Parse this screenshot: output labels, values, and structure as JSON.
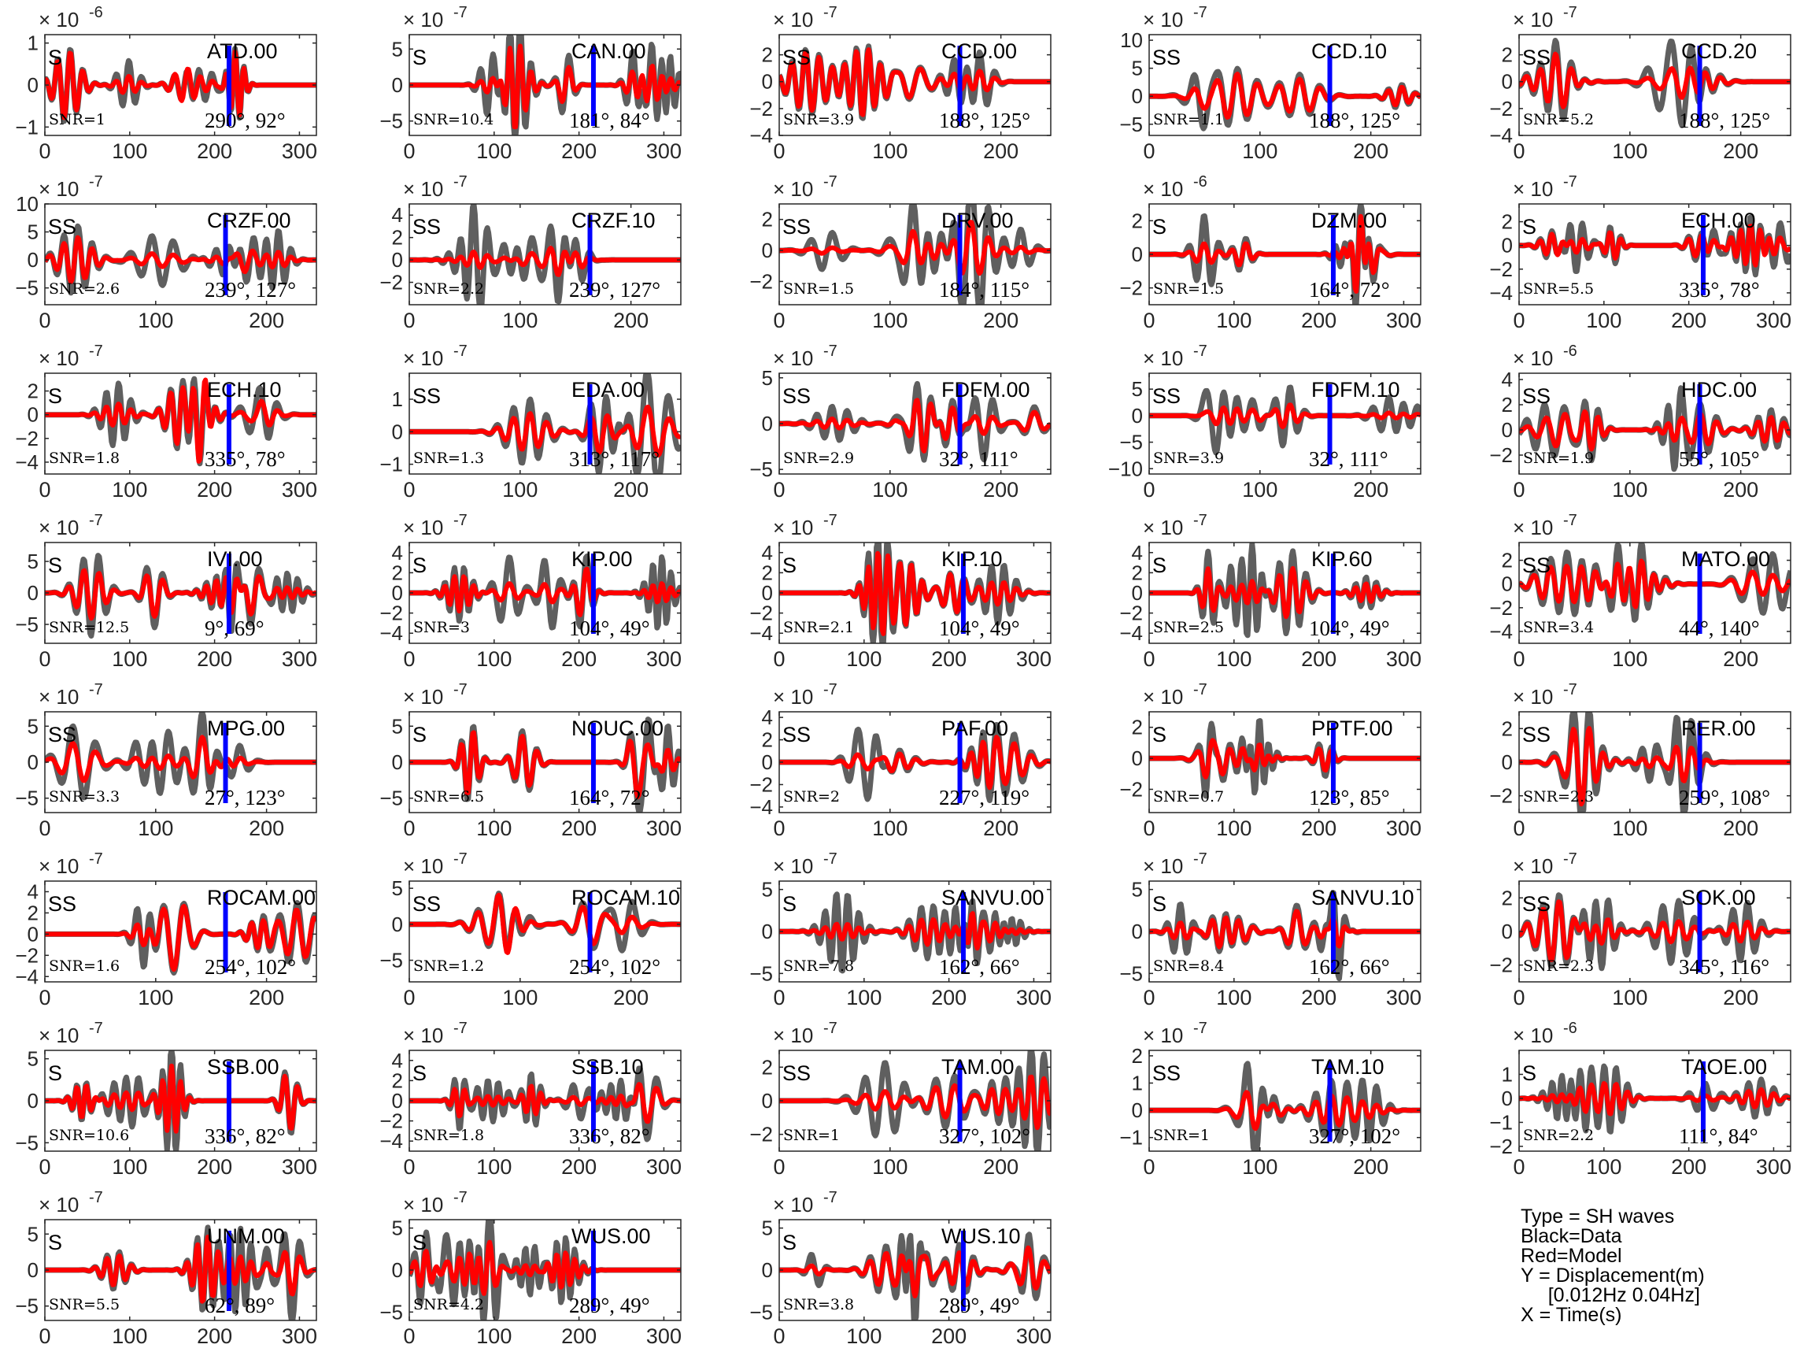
{
  "figure": {
    "legend": {
      "type": "Type = SH waves",
      "black": "Black=Data",
      "red": "Red=Model",
      "y": "Y = Displacement(m)",
      "band": "     [0.012Hz 0.04Hz]",
      "x": "X = Time(s)"
    },
    "colors": {
      "data": "#5f5f5f",
      "model": "#ff0000",
      "marker": "#0000ff",
      "axes": "#262626"
    }
  },
  "chart_data": [
    {
      "type": "line",
      "station": "ATD.00",
      "phase": "S",
      "snr": "SNR=1",
      "angles": "290°, 92°",
      "exponent": "-6",
      "xlim": [
        0,
        320
      ],
      "ylim": [
        -1.2,
        1.2
      ],
      "yticks": [
        -1,
        0,
        1
      ],
      "xticks": [
        0,
        100,
        200,
        300
      ],
      "marker": 217
    },
    {
      "type": "line",
      "station": "CAN.00",
      "phase": "S",
      "snr": "SNR=10.4",
      "angles": "181°, 84°",
      "exponent": "-7",
      "xlim": [
        0,
        320
      ],
      "ylim": [
        -7,
        7
      ],
      "yticks": [
        -5,
        0,
        5
      ],
      "xticks": [
        0,
        100,
        200,
        300
      ],
      "marker": 217
    },
    {
      "type": "line",
      "station": "CCD.00",
      "phase": "SS",
      "snr": "SNR=3.9",
      "angles": "188°, 125°",
      "exponent": "-7",
      "xlim": [
        0,
        245
      ],
      "ylim": [
        -4,
        3.5
      ],
      "yticks": [
        -4,
        -2,
        0,
        2
      ],
      "xticks": [
        0,
        100,
        200
      ],
      "marker": 163
    },
    {
      "type": "line",
      "station": "CCD.10",
      "phase": "SS",
      "snr": "SNR=1.1",
      "angles": "188°, 125°",
      "exponent": "-7",
      "xlim": [
        0,
        245
      ],
      "ylim": [
        -7,
        11
      ],
      "yticks": [
        -5,
        0,
        5,
        10
      ],
      "xticks": [
        0,
        100,
        200
      ],
      "marker": 163
    },
    {
      "type": "line",
      "station": "CCD.20",
      "phase": "SS",
      "snr": "SNR=5.2",
      "angles": "188°, 125°",
      "exponent": "-7",
      "xlim": [
        0,
        245
      ],
      "ylim": [
        -4,
        3.5
      ],
      "yticks": [
        -4,
        -2,
        0,
        2
      ],
      "xticks": [
        0,
        100,
        200
      ],
      "marker": 163
    },
    {
      "type": "line",
      "station": "CRZF.00",
      "phase": "SS",
      "snr": "SNR=2.6",
      "angles": "239°, 127°",
      "exponent": "-7",
      "xlim": [
        0,
        245
      ],
      "ylim": [
        -8,
        10
      ],
      "yticks": [
        -5,
        0,
        5,
        10
      ],
      "xticks": [
        0,
        100,
        200
      ],
      "marker": 163
    },
    {
      "type": "line",
      "station": "CRZF.10",
      "phase": "SS",
      "snr": "SNR=2.2",
      "angles": "239°, 127°",
      "exponent": "-7",
      "xlim": [
        0,
        245
      ],
      "ylim": [
        -4,
        5
      ],
      "yticks": [
        -2,
        0,
        2,
        4
      ],
      "xticks": [
        0,
        100,
        200
      ],
      "marker": 163
    },
    {
      "type": "line",
      "station": "DRV.00",
      "phase": "SS",
      "snr": "SNR=1.5",
      "angles": "184°, 115°",
      "exponent": "-7",
      "xlim": [
        0,
        245
      ],
      "ylim": [
        -3.5,
        3
      ],
      "yticks": [
        -2,
        0,
        2
      ],
      "xticks": [
        0,
        100,
        200
      ],
      "marker": 163
    },
    {
      "type": "line",
      "station": "DZM.00",
      "phase": "S",
      "snr": "SNR=1.5",
      "angles": "164°, 72°",
      "exponent": "-6",
      "xlim": [
        0,
        320
      ],
      "ylim": [
        -3,
        3
      ],
      "yticks": [
        -2,
        0,
        2
      ],
      "xticks": [
        0,
        100,
        200,
        300
      ],
      "marker": 217
    },
    {
      "type": "line",
      "station": "ECH.00",
      "phase": "S",
      "snr": "SNR=5.5",
      "angles": "335°, 78°",
      "exponent": "-7",
      "xlim": [
        0,
        320
      ],
      "ylim": [
        -5,
        3.5
      ],
      "yticks": [
        -4,
        -2,
        0,
        2
      ],
      "xticks": [
        0,
        100,
        200,
        300
      ],
      "marker": 217
    },
    {
      "type": "line",
      "station": "ECH.10",
      "phase": "S",
      "snr": "SNR=1.8",
      "angles": "335°, 78°",
      "exponent": "-7",
      "xlim": [
        0,
        320
      ],
      "ylim": [
        -5,
        3.5
      ],
      "yticks": [
        -4,
        -2,
        0,
        2
      ],
      "xticks": [
        0,
        100,
        200,
        300
      ],
      "marker": 217
    },
    {
      "type": "line",
      "station": "EDA.00",
      "phase": "SS",
      "snr": "SNR=1.3",
      "angles": "313°, 117°",
      "exponent": "-7",
      "xlim": [
        0,
        245
      ],
      "ylim": [
        -1.3,
        1.8
      ],
      "yticks": [
        -1,
        0,
        1
      ],
      "xticks": [
        0,
        100,
        200
      ],
      "marker": 163
    },
    {
      "type": "line",
      "station": "FDFM.00",
      "phase": "SS",
      "snr": "SNR=2.9",
      "angles": "32°, 111°",
      "exponent": "-7",
      "xlim": [
        0,
        245
      ],
      "ylim": [
        -5.5,
        5.5
      ],
      "yticks": [
        -5,
        0,
        5
      ],
      "xticks": [
        0,
        100,
        200
      ],
      "marker": 163
    },
    {
      "type": "line",
      "station": "FDFM.10",
      "phase": "SS",
      "snr": "SNR=3.9",
      "angles": "32°, 111°",
      "exponent": "-7",
      "xlim": [
        0,
        245
      ],
      "ylim": [
        -11,
        8
      ],
      "yticks": [
        -10,
        -5,
        0,
        5
      ],
      "xticks": [
        0,
        100,
        200
      ],
      "marker": 163
    },
    {
      "type": "line",
      "station": "HDC.00",
      "phase": "SS",
      "snr": "SNR=1.9",
      "angles": "55°, 105°",
      "exponent": "-6",
      "xlim": [
        0,
        245
      ],
      "ylim": [
        -3.5,
        4.5
      ],
      "yticks": [
        -2,
        0,
        2,
        4
      ],
      "xticks": [
        0,
        100,
        200
      ],
      "marker": 163
    },
    {
      "type": "line",
      "station": "IVI.00",
      "phase": "S",
      "snr": "SNR=12.5",
      "angles": "9°, 69°",
      "exponent": "-7",
      "xlim": [
        0,
        320
      ],
      "ylim": [
        -8,
        8
      ],
      "yticks": [
        -5,
        0,
        5
      ],
      "xticks": [
        0,
        100,
        200,
        300
      ],
      "marker": 217
    },
    {
      "type": "line",
      "station": "KIP.00",
      "phase": "S",
      "snr": "SNR=3",
      "angles": "104°, 49°",
      "exponent": "-7",
      "xlim": [
        0,
        320
      ],
      "ylim": [
        -5,
        5
      ],
      "yticks": [
        -4,
        -2,
        0,
        2,
        4
      ],
      "xticks": [
        0,
        100,
        200,
        300
      ],
      "marker": 217
    },
    {
      "type": "line",
      "station": "KIP.10",
      "phase": "S",
      "snr": "SNR=2.1",
      "angles": "104°, 49°",
      "exponent": "-7",
      "xlim": [
        0,
        320
      ],
      "ylim": [
        -5,
        5
      ],
      "yticks": [
        -4,
        -2,
        0,
        2,
        4
      ],
      "xticks": [
        0,
        100,
        200,
        300
      ],
      "marker": 217
    },
    {
      "type": "line",
      "station": "KIP.60",
      "phase": "S",
      "snr": "SNR=2.5",
      "angles": "104°, 49°",
      "exponent": "-7",
      "xlim": [
        0,
        320
      ],
      "ylim": [
        -5,
        5
      ],
      "yticks": [
        -4,
        -2,
        0,
        2,
        4
      ],
      "xticks": [
        0,
        100,
        200,
        300
      ],
      "marker": 217
    },
    {
      "type": "line",
      "station": "MATO.00",
      "phase": "SS",
      "snr": "SNR=3.4",
      "angles": "44°, 140°",
      "exponent": "-7",
      "xlim": [
        0,
        245
      ],
      "ylim": [
        -5,
        3.5
      ],
      "yticks": [
        -4,
        -2,
        0,
        2
      ],
      "xticks": [
        0,
        100,
        200
      ],
      "marker": 163
    },
    {
      "type": "line",
      "station": "MPG.00",
      "phase": "SS",
      "snr": "SNR=3.3",
      "angles": "27°, 123°",
      "exponent": "-7",
      "xlim": [
        0,
        245
      ],
      "ylim": [
        -7,
        7
      ],
      "yticks": [
        -5,
        0,
        5
      ],
      "xticks": [
        0,
        100,
        200
      ],
      "marker": 163
    },
    {
      "type": "line",
      "station": "NOUC.00",
      "phase": "S",
      "snr": "SNR=6.5",
      "angles": "164°, 72°",
      "exponent": "-7",
      "xlim": [
        0,
        320
      ],
      "ylim": [
        -7,
        7
      ],
      "yticks": [
        -5,
        0,
        5
      ],
      "xticks": [
        0,
        100,
        200,
        300
      ],
      "marker": 217
    },
    {
      "type": "line",
      "station": "PAF.00",
      "phase": "SS",
      "snr": "SNR=2",
      "angles": "227°, 119°",
      "exponent": "-7",
      "xlim": [
        0,
        245
      ],
      "ylim": [
        -4.5,
        4.5
      ],
      "yticks": [
        -4,
        -2,
        0,
        2,
        4
      ],
      "xticks": [
        0,
        100,
        200
      ],
      "marker": 163
    },
    {
      "type": "line",
      "station": "PPTF.00",
      "phase": "S",
      "snr": "SNR=0.7",
      "angles": "123°, 85°",
      "exponent": "-7",
      "xlim": [
        0,
        320
      ],
      "ylim": [
        -3.5,
        3
      ],
      "yticks": [
        -2,
        0,
        2
      ],
      "xticks": [
        0,
        100,
        200,
        300
      ],
      "marker": 217
    },
    {
      "type": "line",
      "station": "RER.00",
      "phase": "SS",
      "snr": "SNR=2.3",
      "angles": "259°, 108°",
      "exponent": "-7",
      "xlim": [
        0,
        245
      ],
      "ylim": [
        -3,
        3
      ],
      "yticks": [
        -2,
        0,
        2
      ],
      "xticks": [
        0,
        100,
        200
      ],
      "marker": 163
    },
    {
      "type": "line",
      "station": "ROCAM.00",
      "phase": "SS",
      "snr": "SNR=1.6",
      "angles": "254°, 102°",
      "exponent": "-7",
      "xlim": [
        0,
        245
      ],
      "ylim": [
        -4.5,
        5
      ],
      "yticks": [
        -4,
        -2,
        0,
        2,
        4
      ],
      "xticks": [
        0,
        100,
        200
      ],
      "marker": 163
    },
    {
      "type": "line",
      "station": "ROCAM.10",
      "phase": "SS",
      "snr": "SNR=1.2",
      "angles": "254°, 102°",
      "exponent": "-7",
      "xlim": [
        0,
        245
      ],
      "ylim": [
        -8,
        6
      ],
      "yticks": [
        -5,
        0,
        5
      ],
      "xticks": [
        0,
        100,
        200
      ],
      "marker": 163
    },
    {
      "type": "line",
      "station": "SANVU.00",
      "phase": "S",
      "snr": "SNR=7.8",
      "angles": "162°, 66°",
      "exponent": "-7",
      "xlim": [
        0,
        320
      ],
      "ylim": [
        -6,
        6
      ],
      "yticks": [
        -5,
        0,
        5
      ],
      "xticks": [
        0,
        100,
        200,
        300
      ],
      "marker": 217
    },
    {
      "type": "line",
      "station": "SANVU.10",
      "phase": "S",
      "snr": "SNR=8.4",
      "angles": "162°, 66°",
      "exponent": "-7",
      "xlim": [
        0,
        320
      ],
      "ylim": [
        -6,
        6
      ],
      "yticks": [
        -5,
        0,
        5
      ],
      "xticks": [
        0,
        100,
        200,
        300
      ],
      "marker": 217
    },
    {
      "type": "line",
      "station": "SOK.00",
      "phase": "SS",
      "snr": "SNR=2.3",
      "angles": "345°, 116°",
      "exponent": "-7",
      "xlim": [
        0,
        245
      ],
      "ylim": [
        -3,
        3
      ],
      "yticks": [
        -2,
        0,
        2
      ],
      "xticks": [
        0,
        100,
        200
      ],
      "marker": 163
    },
    {
      "type": "line",
      "station": "SSB.00",
      "phase": "S",
      "snr": "SNR=10.6",
      "angles": "336°, 82°",
      "exponent": "-7",
      "xlim": [
        0,
        320
      ],
      "ylim": [
        -6,
        6
      ],
      "yticks": [
        -5,
        0,
        5
      ],
      "xticks": [
        0,
        100,
        200,
        300
      ],
      "marker": 217
    },
    {
      "type": "line",
      "station": "SSB.10",
      "phase": "S",
      "snr": "SNR=1.8",
      "angles": "336°, 82°",
      "exponent": "-7",
      "xlim": [
        0,
        320
      ],
      "ylim": [
        -5,
        5
      ],
      "yticks": [
        -4,
        -2,
        0,
        2,
        4
      ],
      "xticks": [
        0,
        100,
        200,
        300
      ],
      "marker": 217
    },
    {
      "type": "line",
      "station": "TAM.00",
      "phase": "SS",
      "snr": "SNR=1",
      "angles": "327°, 102°",
      "exponent": "-7",
      "xlim": [
        0,
        245
      ],
      "ylim": [
        -3,
        3
      ],
      "yticks": [
        -2,
        0,
        2
      ],
      "xticks": [
        0,
        100,
        200
      ],
      "marker": 163
    },
    {
      "type": "line",
      "station": "TAM.10",
      "phase": "SS",
      "snr": "SNR=1",
      "angles": "327°, 102°",
      "exponent": "-7",
      "xlim": [
        0,
        245
      ],
      "ylim": [
        -1.5,
        2.2
      ],
      "yticks": [
        -1,
        0,
        1,
        2
      ],
      "xticks": [
        0,
        100,
        200
      ],
      "marker": 163
    },
    {
      "type": "line",
      "station": "TAOE.00",
      "phase": "S",
      "snr": "SNR=2.2",
      "angles": "111°, 84°",
      "exponent": "-6",
      "xlim": [
        0,
        320
      ],
      "ylim": [
        -2.2,
        2
      ],
      "yticks": [
        -2,
        -1,
        0,
        1
      ],
      "xticks": [
        0,
        100,
        200,
        300
      ],
      "marker": 217
    },
    {
      "type": "line",
      "station": "UNM.00",
      "phase": "S",
      "snr": "SNR=5.5",
      "angles": "62°, 89°",
      "exponent": "-7",
      "xlim": [
        0,
        320
      ],
      "ylim": [
        -7,
        7
      ],
      "yticks": [
        -5,
        0,
        5
      ],
      "xticks": [
        0,
        100,
        200,
        300
      ],
      "marker": 217
    },
    {
      "type": "line",
      "station": "WUS.00",
      "phase": "S",
      "snr": "SNR=4.2",
      "angles": "289°, 49°",
      "exponent": "-7",
      "xlim": [
        0,
        320
      ],
      "ylim": [
        -6,
        6
      ],
      "yticks": [
        -5,
        0,
        5
      ],
      "xticks": [
        0,
        100,
        200,
        300
      ],
      "marker": 217
    },
    {
      "type": "line",
      "station": "WUS.10",
      "phase": "S",
      "snr": "SNR=3.8",
      "angles": "289°, 49°",
      "exponent": "-7",
      "xlim": [
        0,
        320
      ],
      "ylim": [
        -6,
        6
      ],
      "yticks": [
        -5,
        0,
        5
      ],
      "xticks": [
        0,
        100,
        200,
        300
      ],
      "marker": 217
    }
  ]
}
